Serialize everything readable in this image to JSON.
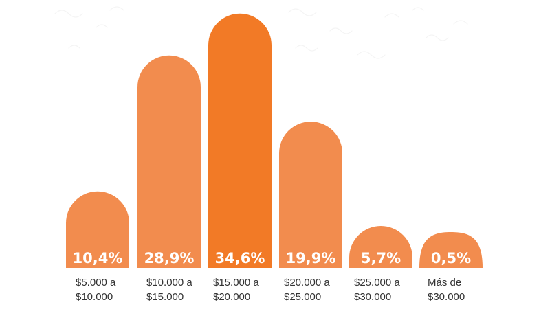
{
  "chart_data": {
    "type": "bar",
    "categories": [
      [
        "$5.000 a",
        "$10.000"
      ],
      [
        "$10.000 a",
        "$15.000"
      ],
      [
        "$15.000 a",
        "$20.000"
      ],
      [
        "$20.000 a",
        "$25.000"
      ],
      [
        "$25.000 a",
        "$30.000"
      ],
      [
        "Más de",
        "$30.000"
      ]
    ],
    "values": [
      10.4,
      28.9,
      34.6,
      19.9,
      5.7,
      0.5
    ],
    "value_labels": [
      "10,4%",
      "28,9%",
      "34,6%",
      "19,9%",
      "5,7%",
      "0,5%"
    ],
    "unit": "%",
    "bar_shape": "rounded-top",
    "colors": {
      "bar": "#f28c4e",
      "bar_highlight": "#f27a26",
      "value_text": "#ffffff",
      "label_text": "#333333"
    },
    "highlighted_index": 2,
    "grid": false,
    "legend": "none"
  }
}
